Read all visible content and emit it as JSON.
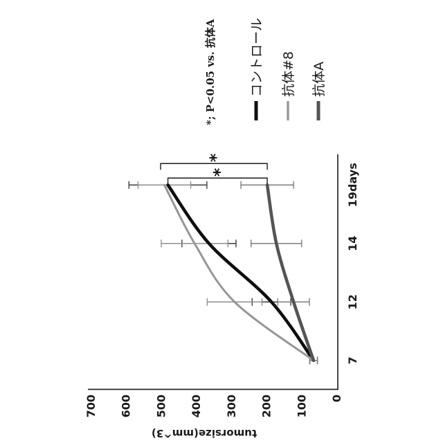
{
  "figure": {
    "orientation": "rotated 90 degrees counterclockwise",
    "background": "#ffffff"
  },
  "chart_data": {
    "type": "line",
    "title": "",
    "xlabel": "days",
    "ylabel": "tumorsize(mm^3)",
    "categories": [
      "7",
      "12",
      "14",
      "19days"
    ],
    "x_values": [
      7,
      12,
      14,
      19
    ],
    "ylim": [
      0,
      700
    ],
    "y_ticks": [
      0,
      100,
      200,
      300,
      400,
      500,
      600,
      700
    ],
    "grid": false,
    "legend_position": "right",
    "annotation": "*; P<0.05 vs. 抗体A",
    "series": [
      {
        "key": "control",
        "name": "コントロール",
        "color": "#0f0f0f",
        "err_color": "#3c3c3c",
        "stroke_width": 4.6,
        "values": [
          65,
          185,
          363,
          480
        ],
        "errors": [
          11,
          55,
          77,
          111
        ]
      },
      {
        "key": "antibody8",
        "name": "抗体#8",
        "color": "#969696",
        "err_color": "#8f8f8f",
        "stroke_width": 3,
        "values": [
          65,
          290,
          404,
          490
        ],
        "errors": [
          11,
          78,
          95,
          75
        ]
      },
      {
        "key": "antibodyA",
        "name": "抗体A",
        "color": "#545454",
        "err_color": "#7d7d7d",
        "stroke_width": 4.6,
        "values": [
          65,
          122,
          171,
          197
        ],
        "errors": [
          11,
          45,
          72,
          75
        ]
      }
    ],
    "significance": [
      {
        "label": "*",
        "compare": [
          "コントロール",
          "抗体A"
        ],
        "at_category": "19days"
      },
      {
        "label": "*",
        "compare": [
          "抗体#8",
          "抗体A"
        ],
        "at_category": "19days"
      }
    ]
  }
}
